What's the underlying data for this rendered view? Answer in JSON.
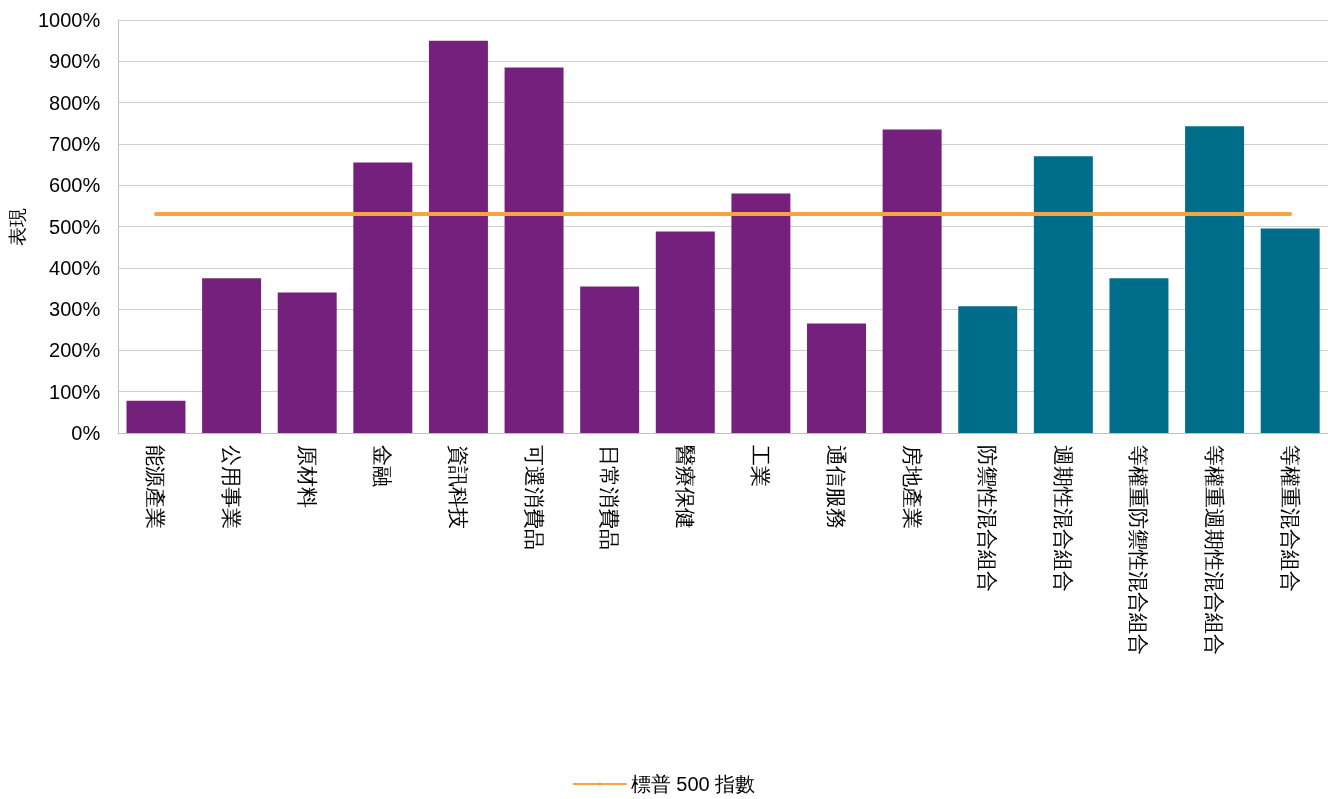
{
  "chart_data": {
    "type": "bar",
    "ylabel": "表現",
    "categories": [
      "能源產業",
      "公用事業",
      "原材料",
      "金融",
      "資訊科技",
      "可選消費品",
      "日常消費品",
      "醫療保健",
      "工業",
      "通信服務",
      "房地產業",
      "防禦性混合組合",
      "週期性混合組合",
      "等權重防禦性混合組合",
      "等權重週期性混合組合",
      "等權重混合組合"
    ],
    "series": [
      {
        "colors": [
          "#76207d",
          "#76207d",
          "#76207d",
          "#76207d",
          "#76207d",
          "#76207d",
          "#76207d",
          "#76207d",
          "#76207d",
          "#76207d",
          "#76207d",
          "#006e8a",
          "#006e8a",
          "#006e8a",
          "#006e8a",
          "#006e8a"
        ],
        "values": [
          78,
          375,
          340,
          655,
          950,
          885,
          355,
          488,
          580,
          265,
          735,
          307,
          670,
          375,
          743,
          495
        ]
      },
      {
        "type": "line",
        "name": "標普 500 指數",
        "color": "#f5a443",
        "values": [
          530,
          530,
          530,
          530,
          530,
          530,
          530,
          530,
          530,
          530,
          530,
          530,
          530,
          530,
          530,
          530
        ]
      }
    ],
    "ylim": [
      0,
      1000
    ],
    "yticks": [
      {
        "value": 0,
        "label": "0%"
      },
      {
        "value": 100,
        "label": "100%"
      },
      {
        "value": 200,
        "label": "200%"
      },
      {
        "value": 300,
        "label": "300%"
      },
      {
        "value": 400,
        "label": "400%"
      },
      {
        "value": 500,
        "label": "500%"
      },
      {
        "value": 600,
        "label": "600%"
      },
      {
        "value": 700,
        "label": "700%"
      },
      {
        "value": 800,
        "label": "800%"
      },
      {
        "value": 900,
        "label": "900%"
      },
      {
        "value": 1000,
        "label": "1000%"
      }
    ],
    "grid": "y",
    "legend": "bottom",
    "marker": "none",
    "line_style": "solid"
  }
}
